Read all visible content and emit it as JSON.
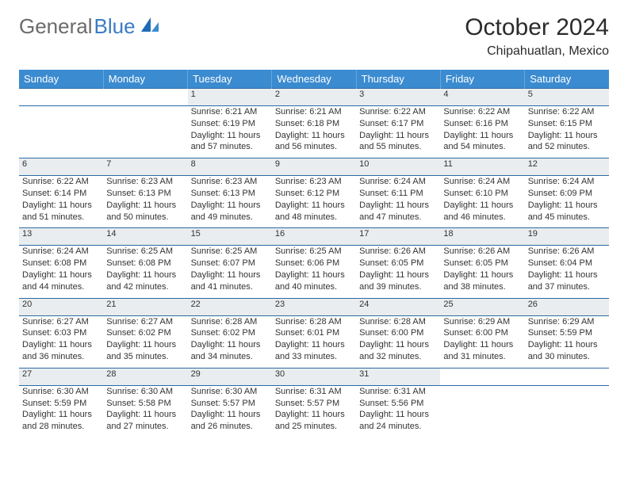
{
  "brand": {
    "part1": "General",
    "part2": "Blue"
  },
  "header": {
    "title": "October 2024",
    "location": "Chipahuatlan, Mexico"
  },
  "colors": {
    "header_bg": "#3b8bd0",
    "header_text": "#ffffff",
    "daynum_bg": "#e9edef",
    "border": "#2c6aa3",
    "brand_grey": "#6b6b6b",
    "brand_blue": "#3b7cc4"
  },
  "weekdays": [
    "Sunday",
    "Monday",
    "Tuesday",
    "Wednesday",
    "Thursday",
    "Friday",
    "Saturday"
  ],
  "weeks": [
    {
      "nums": [
        "",
        "",
        "1",
        "2",
        "3",
        "4",
        "5"
      ],
      "info": [
        "",
        "",
        "Sunrise: 6:21 AM\nSunset: 6:19 PM\nDaylight: 11 hours and 57 minutes.",
        "Sunrise: 6:21 AM\nSunset: 6:18 PM\nDaylight: 11 hours and 56 minutes.",
        "Sunrise: 6:22 AM\nSunset: 6:17 PM\nDaylight: 11 hours and 55 minutes.",
        "Sunrise: 6:22 AM\nSunset: 6:16 PM\nDaylight: 11 hours and 54 minutes.",
        "Sunrise: 6:22 AM\nSunset: 6:15 PM\nDaylight: 11 hours and 52 minutes."
      ]
    },
    {
      "nums": [
        "6",
        "7",
        "8",
        "9",
        "10",
        "11",
        "12"
      ],
      "info": [
        "Sunrise: 6:22 AM\nSunset: 6:14 PM\nDaylight: 11 hours and 51 minutes.",
        "Sunrise: 6:23 AM\nSunset: 6:13 PM\nDaylight: 11 hours and 50 minutes.",
        "Sunrise: 6:23 AM\nSunset: 6:13 PM\nDaylight: 11 hours and 49 minutes.",
        "Sunrise: 6:23 AM\nSunset: 6:12 PM\nDaylight: 11 hours and 48 minutes.",
        "Sunrise: 6:24 AM\nSunset: 6:11 PM\nDaylight: 11 hours and 47 minutes.",
        "Sunrise: 6:24 AM\nSunset: 6:10 PM\nDaylight: 11 hours and 46 minutes.",
        "Sunrise: 6:24 AM\nSunset: 6:09 PM\nDaylight: 11 hours and 45 minutes."
      ]
    },
    {
      "nums": [
        "13",
        "14",
        "15",
        "16",
        "17",
        "18",
        "19"
      ],
      "info": [
        "Sunrise: 6:24 AM\nSunset: 6:08 PM\nDaylight: 11 hours and 44 minutes.",
        "Sunrise: 6:25 AM\nSunset: 6:08 PM\nDaylight: 11 hours and 42 minutes.",
        "Sunrise: 6:25 AM\nSunset: 6:07 PM\nDaylight: 11 hours and 41 minutes.",
        "Sunrise: 6:25 AM\nSunset: 6:06 PM\nDaylight: 11 hours and 40 minutes.",
        "Sunrise: 6:26 AM\nSunset: 6:05 PM\nDaylight: 11 hours and 39 minutes.",
        "Sunrise: 6:26 AM\nSunset: 6:05 PM\nDaylight: 11 hours and 38 minutes.",
        "Sunrise: 6:26 AM\nSunset: 6:04 PM\nDaylight: 11 hours and 37 minutes."
      ]
    },
    {
      "nums": [
        "20",
        "21",
        "22",
        "23",
        "24",
        "25",
        "26"
      ],
      "info": [
        "Sunrise: 6:27 AM\nSunset: 6:03 PM\nDaylight: 11 hours and 36 minutes.",
        "Sunrise: 6:27 AM\nSunset: 6:02 PM\nDaylight: 11 hours and 35 minutes.",
        "Sunrise: 6:28 AM\nSunset: 6:02 PM\nDaylight: 11 hours and 34 minutes.",
        "Sunrise: 6:28 AM\nSunset: 6:01 PM\nDaylight: 11 hours and 33 minutes.",
        "Sunrise: 6:28 AM\nSunset: 6:00 PM\nDaylight: 11 hours and 32 minutes.",
        "Sunrise: 6:29 AM\nSunset: 6:00 PM\nDaylight: 11 hours and 31 minutes.",
        "Sunrise: 6:29 AM\nSunset: 5:59 PM\nDaylight: 11 hours and 30 minutes."
      ]
    },
    {
      "nums": [
        "27",
        "28",
        "29",
        "30",
        "31",
        "",
        ""
      ],
      "info": [
        "Sunrise: 6:30 AM\nSunset: 5:59 PM\nDaylight: 11 hours and 28 minutes.",
        "Sunrise: 6:30 AM\nSunset: 5:58 PM\nDaylight: 11 hours and 27 minutes.",
        "Sunrise: 6:30 AM\nSunset: 5:57 PM\nDaylight: 11 hours and 26 minutes.",
        "Sunrise: 6:31 AM\nSunset: 5:57 PM\nDaylight: 11 hours and 25 minutes.",
        "Sunrise: 6:31 AM\nSunset: 5:56 PM\nDaylight: 11 hours and 24 minutes.",
        "",
        ""
      ]
    }
  ]
}
